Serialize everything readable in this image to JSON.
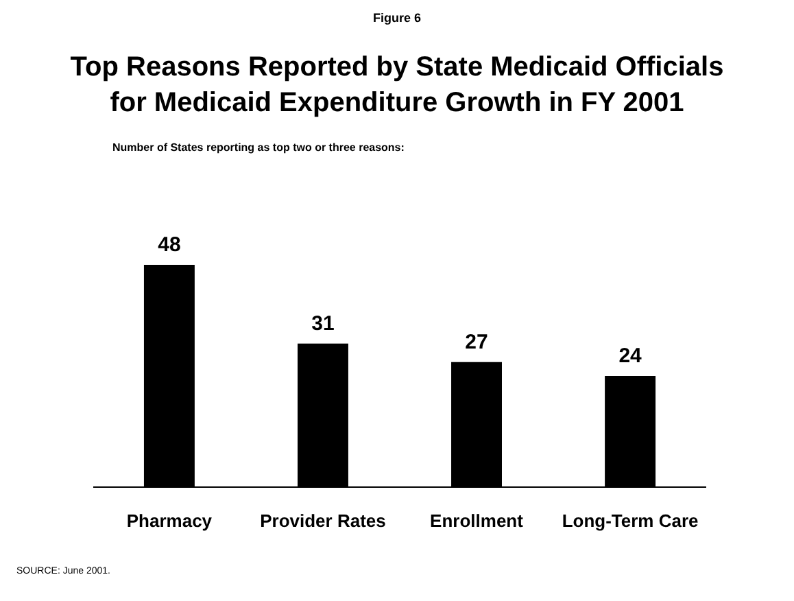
{
  "chart_data": {
    "type": "bar",
    "title": "Top Reasons Reported by State Medicaid Officials for Medicaid Expenditure Growth in FY 2001",
    "subtitle": "Number of States reporting as top two or three reasons:",
    "categories": [
      "Pharmacy",
      "Provider Rates",
      "Enrollment",
      "Long-Term Care"
    ],
    "values": [
      48,
      31,
      27,
      24
    ],
    "color": "#000000",
    "data_labels": true,
    "annotations": [
      "Figure 6",
      "SOURCE: June 2001."
    ]
  }
}
